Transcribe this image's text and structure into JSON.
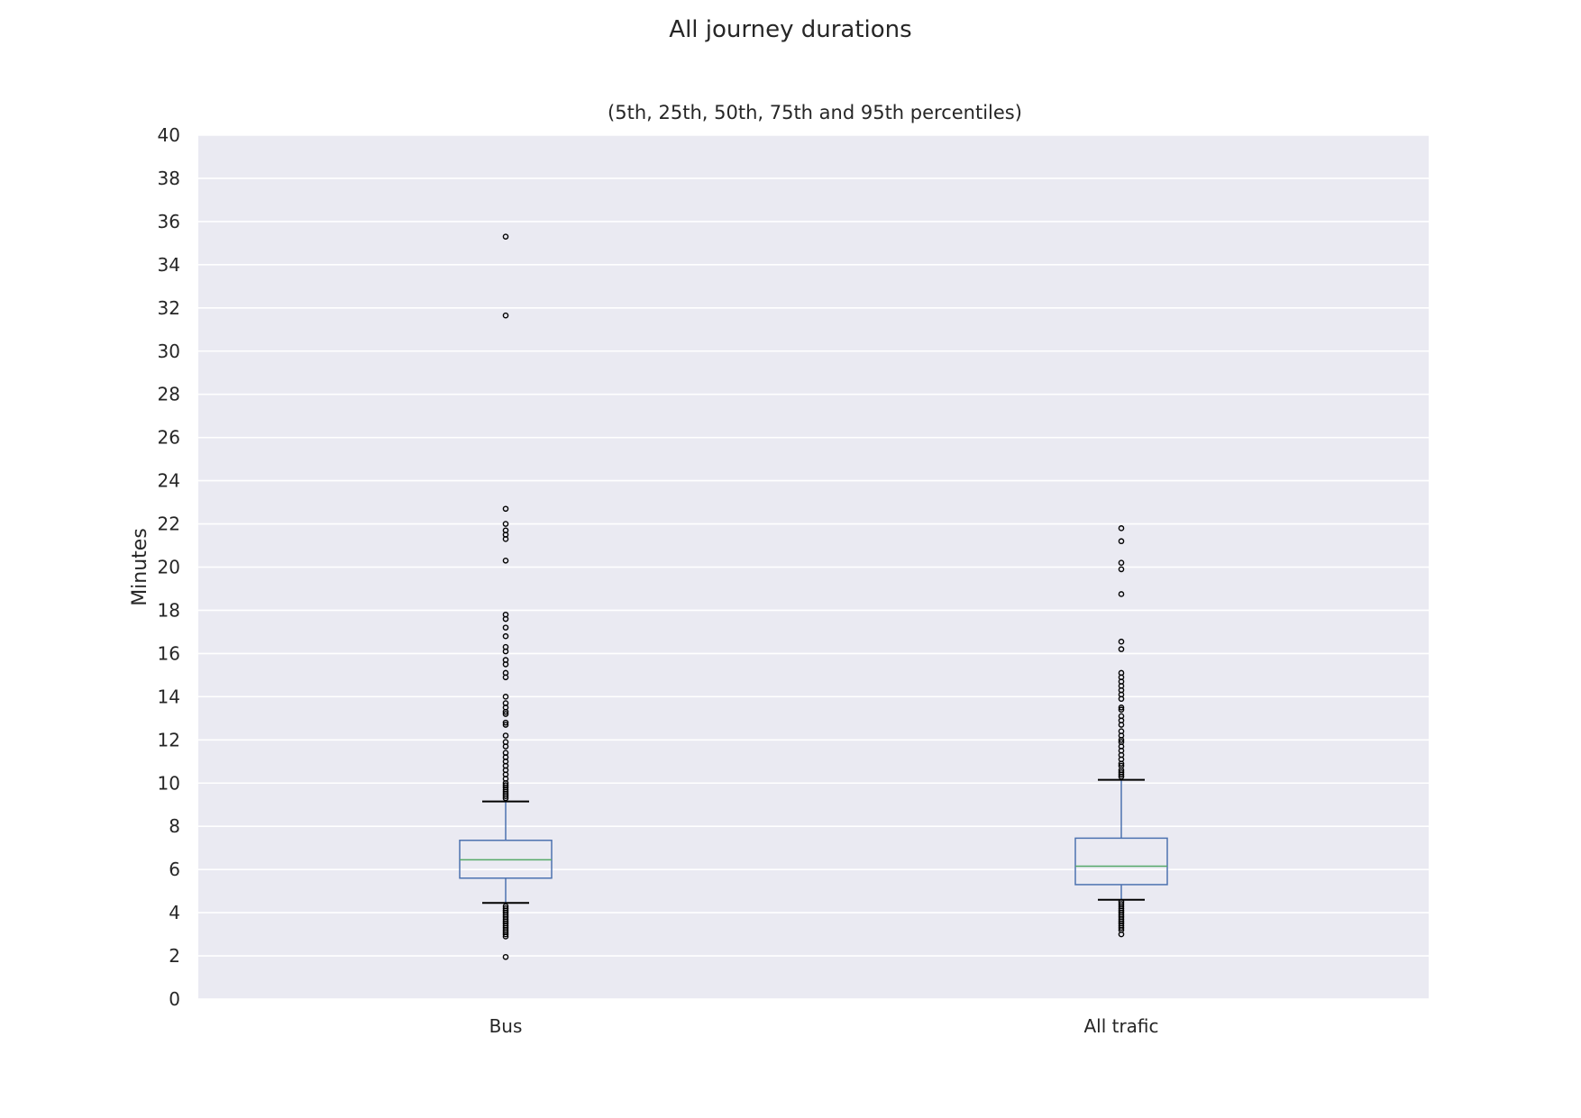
{
  "chart_data": {
    "type": "box",
    "title": "All journey durations",
    "subtitle": "(5th, 25th, 50th, 75th and 95th percentiles)",
    "xlabel": "",
    "ylabel": "Minutes",
    "ylim": [
      0,
      40
    ],
    "yticks": [
      0,
      2,
      4,
      6,
      8,
      10,
      12,
      14,
      16,
      18,
      20,
      22,
      24,
      26,
      28,
      30,
      32,
      34,
      36,
      38,
      40
    ],
    "grid": true,
    "categories": [
      "Bus",
      "All trafic"
    ],
    "boxes": [
      {
        "category": "Bus",
        "whisker_low": 4.45,
        "q1": 5.6,
        "median": 6.45,
        "q3": 7.35,
        "whisker_high": 9.15,
        "outliers": [
          35.3,
          31.65,
          22.7,
          22.0,
          21.7,
          21.5,
          21.3,
          20.3,
          17.8,
          17.6,
          17.2,
          16.8,
          16.3,
          16.1,
          15.7,
          15.5,
          15.1,
          14.9,
          14.0,
          13.7,
          13.5,
          13.3,
          13.2,
          12.8,
          12.7,
          12.2,
          11.9,
          11.7,
          11.4,
          11.2,
          11.0,
          10.8,
          10.6,
          10.4,
          10.2,
          10.0,
          9.9,
          9.8,
          9.7,
          9.6,
          9.5,
          9.4,
          9.3,
          4.3,
          4.2,
          4.1,
          4.0,
          3.9,
          3.8,
          3.7,
          3.6,
          3.5,
          3.4,
          3.3,
          3.2,
          3.1,
          3.0,
          2.9,
          1.95
        ],
        "colors": {
          "box": "#4c72b0",
          "median": "#55a868",
          "whisker": "#4c72b0",
          "cap": "#000000"
        }
      },
      {
        "category": "All trafic",
        "whisker_low": 4.6,
        "q1": 5.3,
        "median": 6.15,
        "q3": 7.45,
        "whisker_high": 10.15,
        "outliers": [
          21.8,
          21.2,
          20.2,
          19.9,
          18.75,
          16.55,
          16.2,
          15.1,
          14.9,
          14.7,
          14.5,
          14.3,
          14.1,
          13.9,
          13.5,
          13.4,
          13.1,
          12.9,
          12.7,
          12.4,
          12.2,
          12.0,
          11.9,
          11.7,
          11.5,
          11.3,
          11.1,
          10.9,
          10.8,
          10.6,
          10.5,
          10.4,
          10.3,
          4.5,
          4.4,
          4.3,
          4.2,
          4.1,
          4.0,
          3.9,
          3.8,
          3.7,
          3.6,
          3.5,
          3.4,
          3.3,
          3.2,
          3.0
        ],
        "colors": {
          "box": "#4c72b0",
          "median": "#55a868",
          "whisker": "#4c72b0",
          "cap": "#000000"
        }
      }
    ],
    "colors": {
      "plot_background": "#eaeaf2",
      "grid": "#ffffff",
      "outlier": "#000000"
    }
  }
}
